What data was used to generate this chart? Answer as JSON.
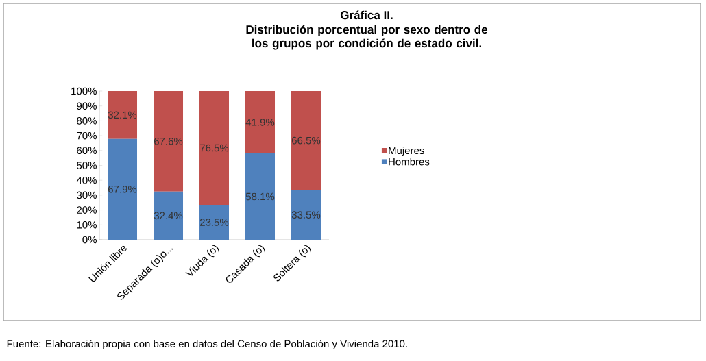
{
  "chart_data": {
    "type": "bar",
    "stacked": true,
    "title": "Gráfica II.",
    "subtitle": "Distribución porcentual por sexo dentro de los grupos por condición de estado civil.",
    "categories": [
      "Unión libre",
      "Separada (o)o...",
      "Viuda (o)",
      "Casada (o)",
      "Soltera (o)"
    ],
    "series": [
      {
        "name": "Hombres",
        "color": "#4f81bd",
        "values": [
          67.9,
          32.4,
          23.5,
          58.1,
          33.5
        ],
        "value_labels": [
          "67.9%",
          "32.4%",
          "23.5%",
          "58.1%",
          "33.5%"
        ]
      },
      {
        "name": "Mujeres",
        "color": "#c0504d",
        "values": [
          32.1,
          67.6,
          76.5,
          41.9,
          66.5
        ],
        "value_labels": [
          "32.1%",
          "67.6%",
          "76.5%",
          "41.9%",
          "66.5%"
        ]
      }
    ],
    "ylim": [
      0,
      100
    ],
    "yticks": [
      {
        "value": 0,
        "label": "0%"
      },
      {
        "value": 10,
        "label": "10%"
      },
      {
        "value": 20,
        "label": "20%"
      },
      {
        "value": 30,
        "label": "30%"
      },
      {
        "value": 40,
        "label": "40%"
      },
      {
        "value": 50,
        "label": "50%"
      },
      {
        "value": 60,
        "label": "60%"
      },
      {
        "value": 70,
        "label": "70%"
      },
      {
        "value": 80,
        "label": "80%"
      },
      {
        "value": 90,
        "label": "90%"
      },
      {
        "value": 100,
        "label": "100%"
      }
    ],
    "legend": "right",
    "annotations": [
      "Fuente: Elaboración propia con base en datos del Censo de Población y Vivienda 2010."
    ]
  }
}
